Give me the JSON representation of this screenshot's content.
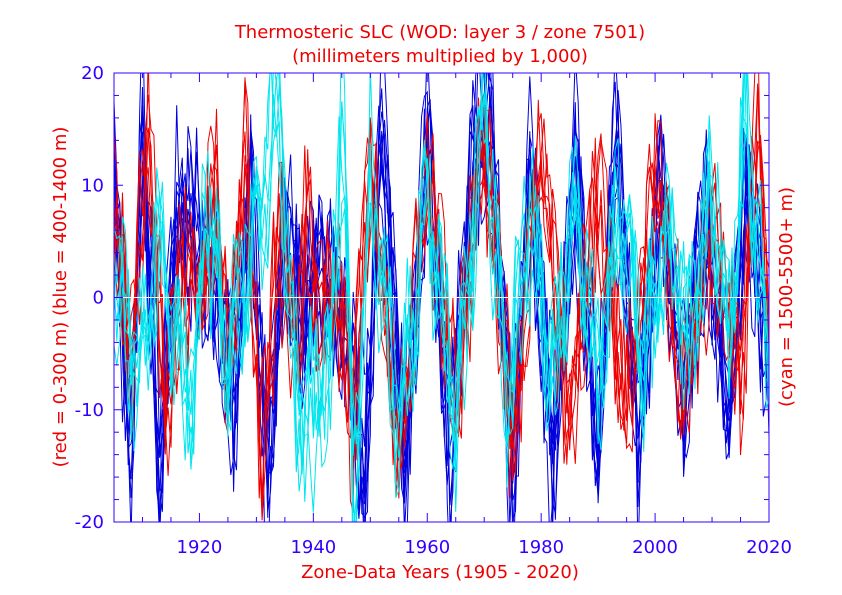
{
  "chart_data": {
    "type": "line",
    "title": "Thermosteric SLC (WOD: layer 3 / zone 7501)",
    "subtitle": "(millimeters multiplied by 1,000)",
    "xlabel": "Zone-Data Years (1905 - 2020)",
    "ylabel_left": "(red = 0-300 m)  (blue = 400-1400 m)",
    "ylabel_right": "(cyan = 1500-5500+ m)",
    "xlim": [
      1905,
      2020
    ],
    "ylim": [
      -20,
      20
    ],
    "x_ticks": [
      1920,
      1940,
      1960,
      1980,
      2000,
      2020
    ],
    "y_ticks": [
      -20,
      -10,
      0,
      10,
      20
    ],
    "grid": false,
    "colors": {
      "axis": "#3300ff",
      "title": "#ee0000",
      "red_series": "#ee0000",
      "blue_series": "#0000dd",
      "cyan_series": "#00e5ee",
      "zero_line": "#ffffff"
    },
    "series_groups": [
      {
        "name": "red = 0-300 m",
        "color": "#ee0000",
        "count": 6,
        "seed": 11,
        "anchors": [
          [
            1905,
            8
          ],
          [
            1908,
            -6
          ],
          [
            1911,
            16
          ],
          [
            1914,
            -12
          ],
          [
            1917,
            4
          ],
          [
            1920,
            0
          ],
          [
            1923,
            10
          ],
          [
            1925,
            -9
          ],
          [
            1928,
            14
          ],
          [
            1931,
            -16
          ],
          [
            1934,
            6
          ],
          [
            1937,
            -4
          ],
          [
            1939,
            8
          ],
          [
            1941,
            -3
          ],
          [
            1944,
            2
          ],
          [
            1947,
            -12
          ],
          [
            1950,
            14
          ],
          [
            1955,
            -16
          ],
          [
            1960,
            12
          ],
          [
            1965,
            -10
          ],
          [
            1970,
            16
          ],
          [
            1975,
            -14
          ],
          [
            1980,
            15
          ],
          [
            1985,
            -12
          ],
          [
            1990,
            10
          ],
          [
            1995,
            -11
          ],
          [
            2000,
            12
          ],
          [
            2005,
            -9
          ],
          [
            2010,
            7
          ],
          [
            2015,
            -10
          ],
          [
            2018,
            19
          ],
          [
            2020,
            -6
          ]
        ]
      },
      {
        "name": "blue = 400-1400 m",
        "color": "#0000dd",
        "count": 10,
        "seed": 23,
        "anchors": [
          [
            1905,
            12
          ],
          [
            1908,
            -18
          ],
          [
            1910,
            20
          ],
          [
            1913,
            -20
          ],
          [
            1916,
            10
          ],
          [
            1920,
            6
          ],
          [
            1923,
            3
          ],
          [
            1926,
            -12
          ],
          [
            1929,
            12
          ],
          [
            1932,
            -20
          ],
          [
            1935,
            8
          ],
          [
            1938,
            -2
          ],
          [
            1940,
            2
          ],
          [
            1943,
            1
          ],
          [
            1946,
            -4
          ],
          [
            1949,
            -20
          ],
          [
            1952,
            20
          ],
          [
            1956,
            -20
          ],
          [
            1960,
            18
          ],
          [
            1964,
            -18
          ],
          [
            1968,
            15
          ],
          [
            1971,
            20
          ],
          [
            1975,
            -20
          ],
          [
            1978,
            16
          ],
          [
            1982,
            -18
          ],
          [
            1986,
            14
          ],
          [
            1990,
            -17
          ],
          [
            1993,
            18
          ],
          [
            1997,
            -16
          ],
          [
            2001,
            13
          ],
          [
            2005,
            -11
          ],
          [
            2009,
            9
          ],
          [
            2013,
            -12
          ],
          [
            2016,
            14
          ],
          [
            2020,
            -8
          ]
        ]
      },
      {
        "name": "cyan = 1500-5500+ m",
        "color": "#00e5ee",
        "count": 6,
        "seed": 37,
        "anchors": [
          [
            1905,
            4
          ],
          [
            1909,
            -8
          ],
          [
            1913,
            5
          ],
          [
            1916,
            -4
          ],
          [
            1919,
            -11
          ],
          [
            1921,
            10
          ],
          [
            1925,
            -6
          ],
          [
            1930,
            8
          ],
          [
            1934,
            19
          ],
          [
            1937,
            -10
          ],
          [
            1940,
            -11
          ],
          [
            1943,
            -8
          ],
          [
            1945,
            20
          ],
          [
            1947,
            -20
          ],
          [
            1950,
            12
          ],
          [
            1955,
            -14
          ],
          [
            1960,
            10
          ],
          [
            1965,
            -12
          ],
          [
            1970,
            20
          ],
          [
            1974,
            -10
          ],
          [
            1978,
            8
          ],
          [
            1982,
            -9
          ],
          [
            1986,
            9
          ],
          [
            1990,
            -8
          ],
          [
            1994,
            9
          ],
          [
            1998,
            -7
          ],
          [
            2002,
            8
          ],
          [
            2006,
            -5
          ],
          [
            2010,
            11
          ],
          [
            2013,
            -6
          ],
          [
            2016,
            19
          ],
          [
            2020,
            -8
          ]
        ]
      }
    ]
  }
}
